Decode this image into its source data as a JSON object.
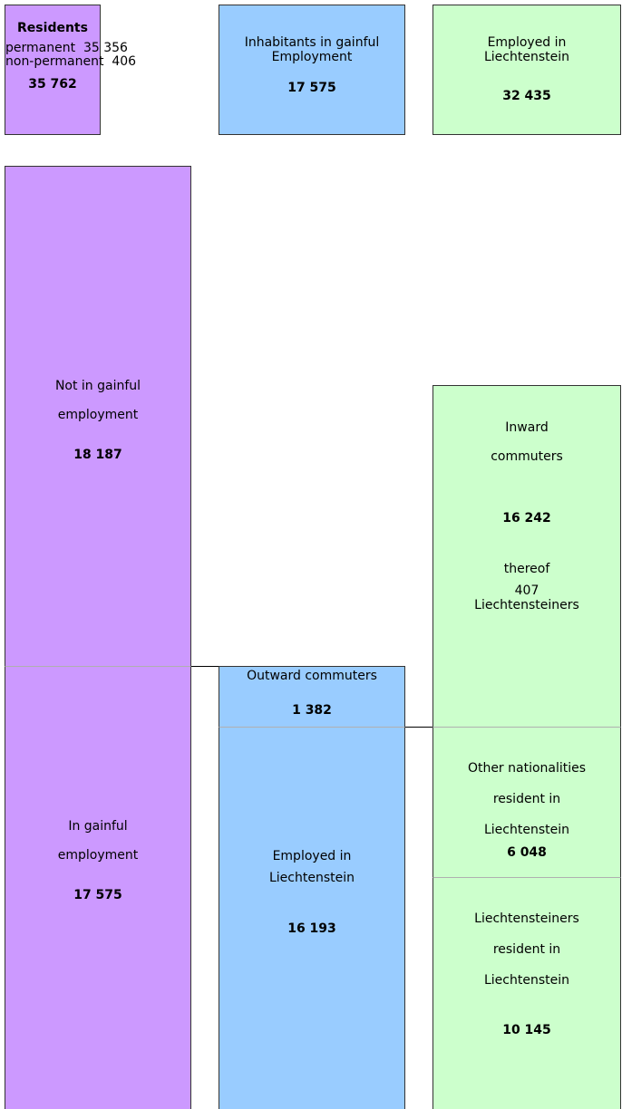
{
  "top": [
    {
      "title": "Residents",
      "details": [
        "permanent  35 356",
        "non-permanent  406"
      ],
      "value": "35 762"
    },
    {
      "title": [
        "Inhabitants in gainful",
        "Employment"
      ],
      "value": "17 575"
    },
    {
      "title": [
        "Employed in",
        "Liechtenstein"
      ],
      "value": "32 435"
    }
  ],
  "residents": [
    {
      "label": [
        "Not in gainful",
        "employment"
      ],
      "value": "18 187"
    },
    {
      "label": [
        "In gainful",
        "employment"
      ],
      "value": "17 575"
    }
  ],
  "inhabitants": [
    {
      "label": [
        "Outward commuters"
      ],
      "value": "1 382"
    },
    {
      "label": [
        "Employed in",
        "Liechtenstein"
      ],
      "value": "16 193"
    }
  ],
  "employed": [
    {
      "label": [
        "Inward",
        "commuters"
      ],
      "value": "16 242",
      "note": [
        "thereof",
        "407",
        "Liechtensteiners"
      ]
    },
    {
      "label": [
        "Other nationalities",
        "resident in",
        "Liechtenstein"
      ],
      "value": "6 048"
    },
    {
      "label": [
        "Liechtensteiners",
        "resident in",
        "Liechtenstein"
      ],
      "value": "10 145"
    }
  ]
}
